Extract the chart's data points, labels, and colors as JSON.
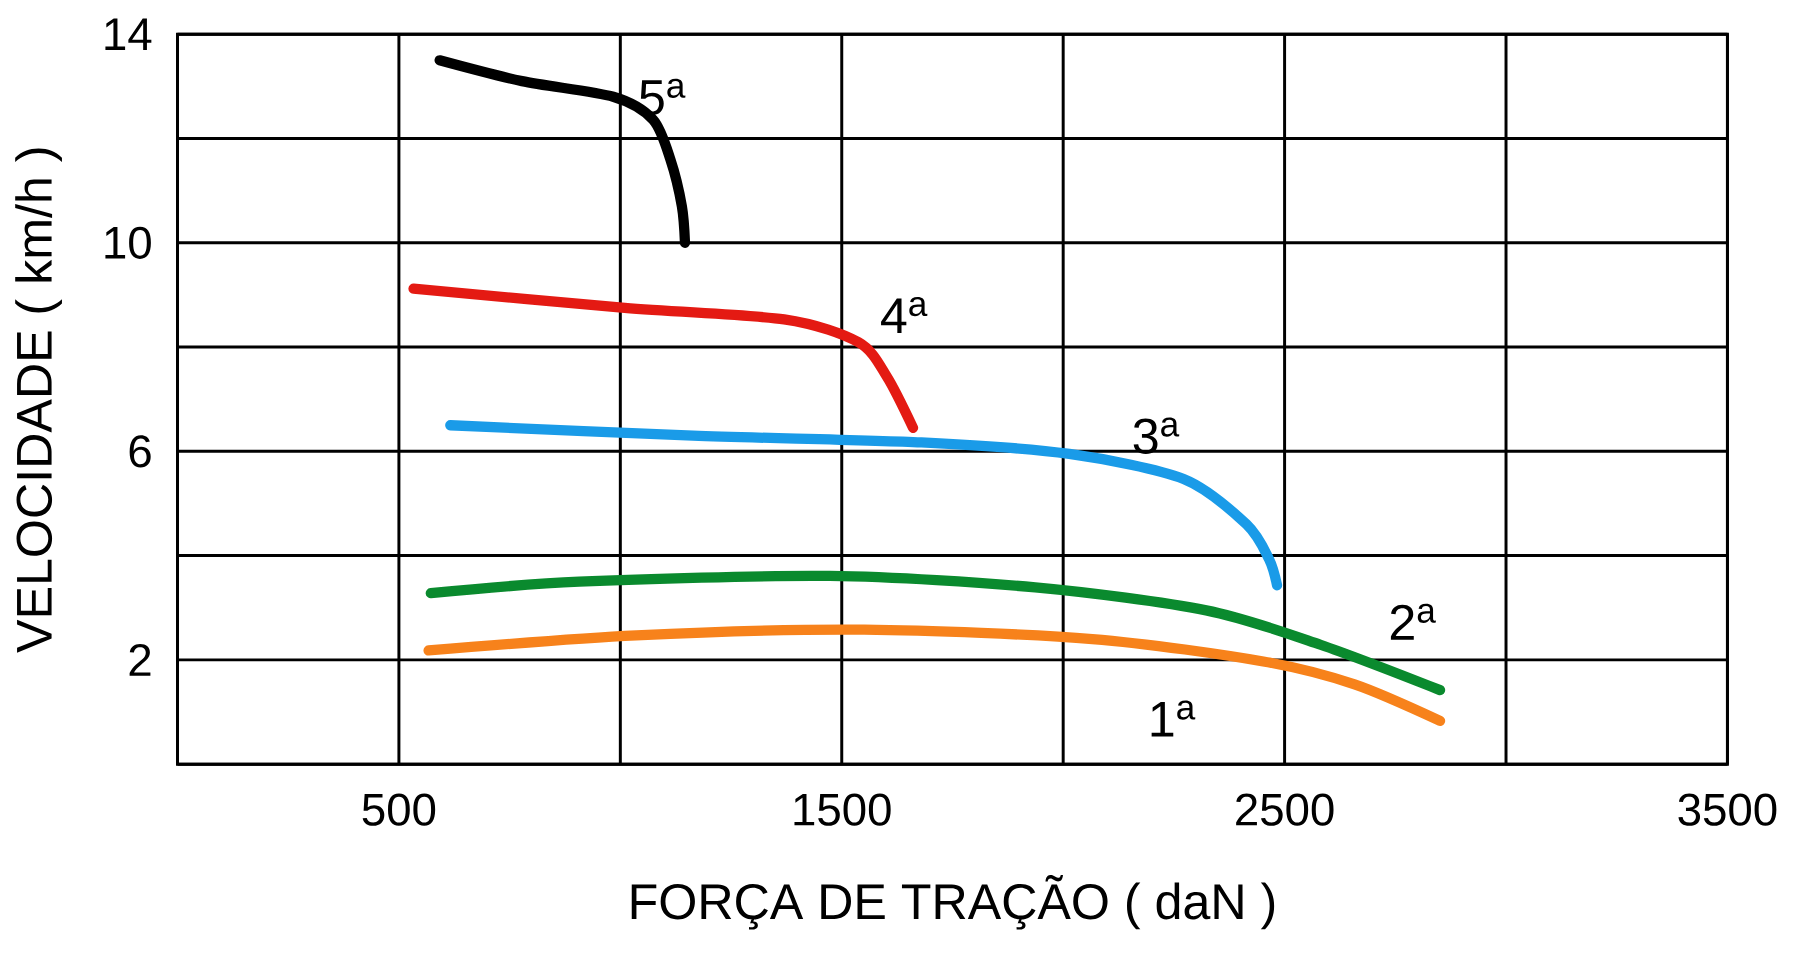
{
  "chart_data": {
    "type": "line",
    "xlabel": "FORÇA DE TRAÇÃO ( daN )",
    "ylabel": "VELOCIDADE ( km/h )",
    "xlim": [
      0,
      3500
    ],
    "ylim": [
      0,
      14
    ],
    "xticks": [
      {
        "value": 0,
        "label": null
      },
      500,
      {
        "value": 1000,
        "label": null
      },
      1500,
      {
        "value": 2000,
        "label": null
      },
      2500,
      {
        "value": 3000,
        "label": null
      },
      3500
    ],
    "yticks": [
      {
        "value": 0,
        "label": null
      },
      2,
      {
        "value": 4,
        "label": null
      },
      6,
      {
        "value": 8,
        "label": null
      },
      10,
      {
        "value": 12,
        "label": null
      },
      14
    ],
    "grid": true,
    "marker": "none",
    "line_style": "solid",
    "series": [
      {
        "name": "5$^{a}$",
        "color": "#000000",
        "x": [
          592,
          778,
          984,
          1074,
          1113,
          1139,
          1146
        ],
        "values": [
          13.5,
          13.1,
          12.8,
          12.36,
          11.6,
          10.7,
          10.0
        ]
      },
      {
        "name": "4$^{a}$",
        "color": "#e41a13",
        "x": [
          533,
          1010,
          1370,
          1538,
          1602,
          1661
        ],
        "values": [
          9.12,
          8.75,
          8.53,
          8.09,
          7.43,
          6.45
        ]
      },
      {
        "name": "3$^{a}$",
        "color": "#1a9be8",
        "x": [
          616,
          1164,
          1680,
          2014,
          2272,
          2414,
          2465,
          2483
        ],
        "values": [
          6.5,
          6.3,
          6.17,
          5.95,
          5.47,
          4.6,
          3.93,
          3.43
        ]
      },
      {
        "name": "2$^{a}$",
        "color": "#0a8a2e",
        "x": [
          572,
          907,
          1473,
          1937,
          2323,
          2581,
          2851
        ],
        "values": [
          3.28,
          3.5,
          3.61,
          3.39,
          2.95,
          2.29,
          1.42
        ]
      },
      {
        "name": "1$^{a}$",
        "color": "#f7821b",
        "x": [
          567,
          1036,
          1551,
          2066,
          2452,
          2658,
          2851
        ],
        "values": [
          2.18,
          2.47,
          2.58,
          2.4,
          1.97,
          1.53,
          0.83
        ]
      }
    ]
  }
}
